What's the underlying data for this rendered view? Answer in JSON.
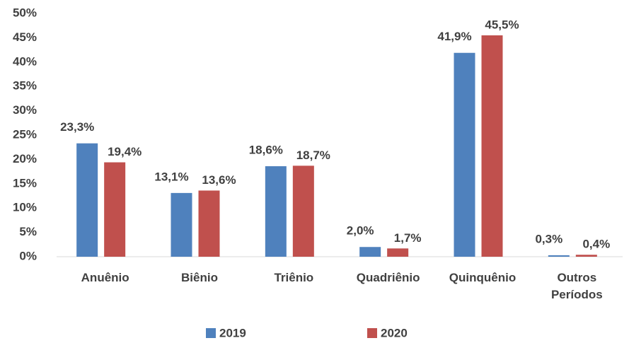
{
  "chart_data": {
    "type": "bar",
    "categories": [
      "Anuênio",
      "Biênio",
      "Triênio",
      "Quadriênio",
      "Quinquênio",
      "Outros Períodos"
    ],
    "series": [
      {
        "name": "2019",
        "color": "#4f81bd",
        "values": [
          23.3,
          13.1,
          18.6,
          2.0,
          41.9,
          0.3
        ],
        "value_labels": [
          "23,3%",
          "13,1%",
          "18,6%",
          "2,0%",
          "41,9%",
          "0,3%"
        ]
      },
      {
        "name": "2020",
        "color": "#c0504d",
        "values": [
          19.4,
          13.6,
          18.7,
          1.7,
          45.5,
          0.4
        ],
        "value_labels": [
          "19,4%",
          "13,6%",
          "18,7%",
          "1,7%",
          "45,5%",
          "0,4%"
        ]
      }
    ],
    "ylim": [
      0,
      50
    ],
    "yticks": [
      {
        "value": 0,
        "label": "0%"
      },
      {
        "value": 5,
        "label": "5%"
      },
      {
        "value": 10,
        "label": "10%"
      },
      {
        "value": 15,
        "label": "15%"
      },
      {
        "value": 20,
        "label": "20%"
      },
      {
        "value": 25,
        "label": "25%"
      },
      {
        "value": 30,
        "label": "30%"
      },
      {
        "value": 35,
        "label": "35%"
      },
      {
        "value": 40,
        "label": "40%"
      },
      {
        "value": 45,
        "label": "45%"
      },
      {
        "value": 50,
        "label": "50%"
      }
    ],
    "grid": false,
    "legend": "bottom"
  }
}
